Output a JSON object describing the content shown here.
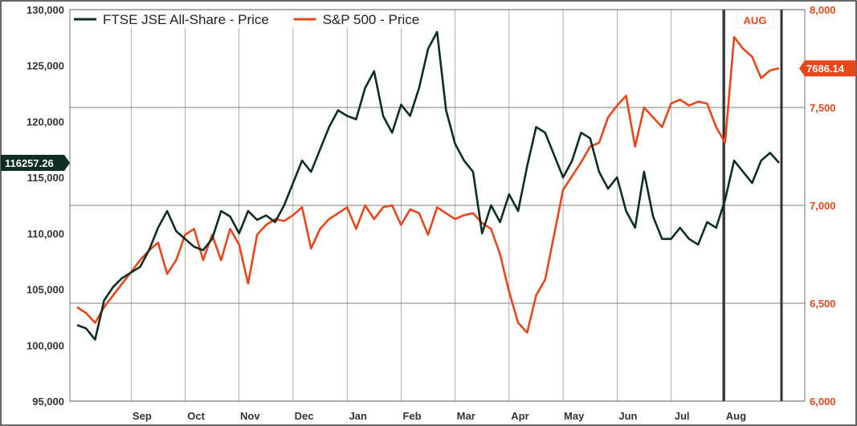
{
  "chart_data": {
    "type": "line",
    "title": "",
    "xlabel": "",
    "ylabel": "",
    "x_labels": [
      "Sep",
      "Oct",
      "Nov",
      "Dec",
      "Jan",
      "Feb",
      "Mar",
      "Apr",
      "May",
      "Jun",
      "Jul",
      "Aug"
    ],
    "left_axis": {
      "ylim": [
        95000,
        130000
      ],
      "ticks": [
        "95,000",
        "100,000",
        "105,000",
        "110,000",
        "115,000",
        "120,000",
        "125,000",
        "130,000"
      ],
      "tick_values": [
        95000,
        100000,
        105000,
        110000,
        115000,
        120000,
        125000,
        130000
      ]
    },
    "right_axis": {
      "ylim": [
        6000,
        8000
      ],
      "ticks": [
        "6,000",
        "6,500",
        "7,000",
        "7,500",
        "8,000"
      ],
      "tick_values": [
        6000,
        6500,
        7000,
        7500,
        8000
      ]
    },
    "legend_placement": "top-left",
    "grid": true,
    "highlight_label": "AUG",
    "series": [
      {
        "name": "S&P 500 - Price",
        "color": "#e8471c",
        "axis": "right",
        "last_value_label": "7686.14",
        "values": [
          [
            0.0,
            6480
          ],
          [
            0.5,
            6450
          ],
          [
            1.0,
            6400
          ],
          [
            1.5,
            6480
          ],
          [
            2.0,
            6540
          ],
          [
            2.5,
            6600
          ],
          [
            3.0,
            6660
          ],
          [
            3.5,
            6720
          ],
          [
            4.0,
            6770
          ],
          [
            4.5,
            6810
          ],
          [
            5.0,
            6650
          ],
          [
            5.5,
            6720
          ],
          [
            6.0,
            6850
          ],
          [
            6.5,
            6880
          ],
          [
            7.0,
            6720
          ],
          [
            7.5,
            6850
          ],
          [
            8.0,
            6720
          ],
          [
            8.5,
            6880
          ],
          [
            9.0,
            6800
          ],
          [
            9.5,
            6600
          ],
          [
            10.0,
            6850
          ],
          [
            10.5,
            6900
          ],
          [
            11.0,
            6930
          ],
          [
            11.5,
            6920
          ],
          [
            12.0,
            6950
          ],
          [
            12.5,
            6990
          ],
          [
            13.0,
            6780
          ],
          [
            13.5,
            6880
          ],
          [
            14.0,
            6930
          ],
          [
            14.5,
            6960
          ],
          [
            15.0,
            6990
          ],
          [
            15.5,
            6880
          ],
          [
            16.0,
            7000
          ],
          [
            16.5,
            6930
          ],
          [
            17.0,
            6990
          ],
          [
            17.5,
            7000
          ],
          [
            18.0,
            6900
          ],
          [
            18.5,
            6980
          ],
          [
            19.0,
            6960
          ],
          [
            19.5,
            6850
          ],
          [
            20.0,
            6990
          ],
          [
            20.5,
            6960
          ],
          [
            21.0,
            6930
          ],
          [
            21.5,
            6950
          ],
          [
            22.0,
            6960
          ],
          [
            22.5,
            6910
          ],
          [
            23.0,
            6880
          ],
          [
            23.5,
            6750
          ],
          [
            24.0,
            6560
          ],
          [
            24.5,
            6400
          ],
          [
            25.0,
            6350
          ],
          [
            25.5,
            6540
          ],
          [
            26.0,
            6620
          ],
          [
            26.5,
            6850
          ],
          [
            27.0,
            7080
          ],
          [
            27.5,
            7150
          ],
          [
            28.0,
            7220
          ],
          [
            28.5,
            7300
          ],
          [
            29.0,
            7320
          ],
          [
            29.5,
            7450
          ],
          [
            30.0,
            7510
          ],
          [
            30.5,
            7560
          ],
          [
            31.0,
            7300
          ],
          [
            31.5,
            7500
          ],
          [
            32.0,
            7450
          ],
          [
            32.5,
            7400
          ],
          [
            33.0,
            7520
          ],
          [
            33.5,
            7540
          ],
          [
            34.0,
            7510
          ],
          [
            34.5,
            7530
          ],
          [
            35.0,
            7520
          ],
          [
            35.5,
            7400
          ],
          [
            36.0,
            7320
          ],
          [
            36.5,
            7860
          ],
          [
            37.0,
            7800
          ],
          [
            37.5,
            7760
          ],
          [
            38.0,
            7650
          ],
          [
            38.5,
            7690
          ],
          [
            39.0,
            7700
          ]
        ]
      },
      {
        "name": "FTSE JSE All-Share - Price",
        "color": "#0e2e24",
        "axis": "left",
        "last_value_label": "116257.26",
        "values": [
          [
            0.0,
            101800
          ],
          [
            0.5,
            101500
          ],
          [
            1.0,
            100500
          ],
          [
            1.5,
            104000
          ],
          [
            2.0,
            105200
          ],
          [
            2.5,
            106000
          ],
          [
            3.0,
            106500
          ],
          [
            3.5,
            107000
          ],
          [
            4.0,
            108500
          ],
          [
            4.5,
            110500
          ],
          [
            5.0,
            112000
          ],
          [
            5.5,
            110200
          ],
          [
            6.0,
            109500
          ],
          [
            6.5,
            108800
          ],
          [
            7.0,
            108500
          ],
          [
            7.5,
            109500
          ],
          [
            8.0,
            112000
          ],
          [
            8.5,
            111500
          ],
          [
            9.0,
            110000
          ],
          [
            9.5,
            112000
          ],
          [
            10.0,
            111200
          ],
          [
            10.5,
            111600
          ],
          [
            11.0,
            111000
          ],
          [
            11.5,
            112500
          ],
          [
            12.0,
            114500
          ],
          [
            12.5,
            116500
          ],
          [
            13.0,
            115500
          ],
          [
            13.5,
            117500
          ],
          [
            14.0,
            119500
          ],
          [
            14.5,
            121000
          ],
          [
            15.0,
            120500
          ],
          [
            15.5,
            120200
          ],
          [
            16.0,
            123000
          ],
          [
            16.5,
            124500
          ],
          [
            17.0,
            120500
          ],
          [
            17.5,
            119000
          ],
          [
            18.0,
            121500
          ],
          [
            18.5,
            120500
          ],
          [
            19.0,
            123000
          ],
          [
            19.5,
            126500
          ],
          [
            20.0,
            128000
          ],
          [
            20.5,
            121000
          ],
          [
            21.0,
            118000
          ],
          [
            21.5,
            116500
          ],
          [
            22.0,
            115500
          ],
          [
            22.5,
            110000
          ],
          [
            23.0,
            112500
          ],
          [
            23.5,
            111000
          ],
          [
            24.0,
            113500
          ],
          [
            24.5,
            112000
          ],
          [
            25.0,
            116000
          ],
          [
            25.5,
            119500
          ],
          [
            26.0,
            119000
          ],
          [
            26.5,
            117000
          ],
          [
            27.0,
            115000
          ],
          [
            27.5,
            116500
          ],
          [
            28.0,
            119000
          ],
          [
            28.5,
            118500
          ],
          [
            29.0,
            115500
          ],
          [
            29.5,
            114000
          ],
          [
            30.0,
            115000
          ],
          [
            30.5,
            112000
          ],
          [
            31.0,
            110500
          ],
          [
            31.5,
            115500
          ],
          [
            32.0,
            111500
          ],
          [
            32.5,
            109500
          ],
          [
            33.0,
            109500
          ],
          [
            33.5,
            110500
          ],
          [
            34.0,
            109500
          ],
          [
            34.5,
            109000
          ],
          [
            35.0,
            111000
          ],
          [
            35.5,
            110500
          ],
          [
            36.0,
            113000
          ],
          [
            36.5,
            116500
          ],
          [
            37.0,
            115500
          ],
          [
            37.5,
            114500
          ],
          [
            38.0,
            116500
          ],
          [
            38.5,
            117200
          ],
          [
            39.0,
            116300
          ]
        ]
      }
    ]
  }
}
